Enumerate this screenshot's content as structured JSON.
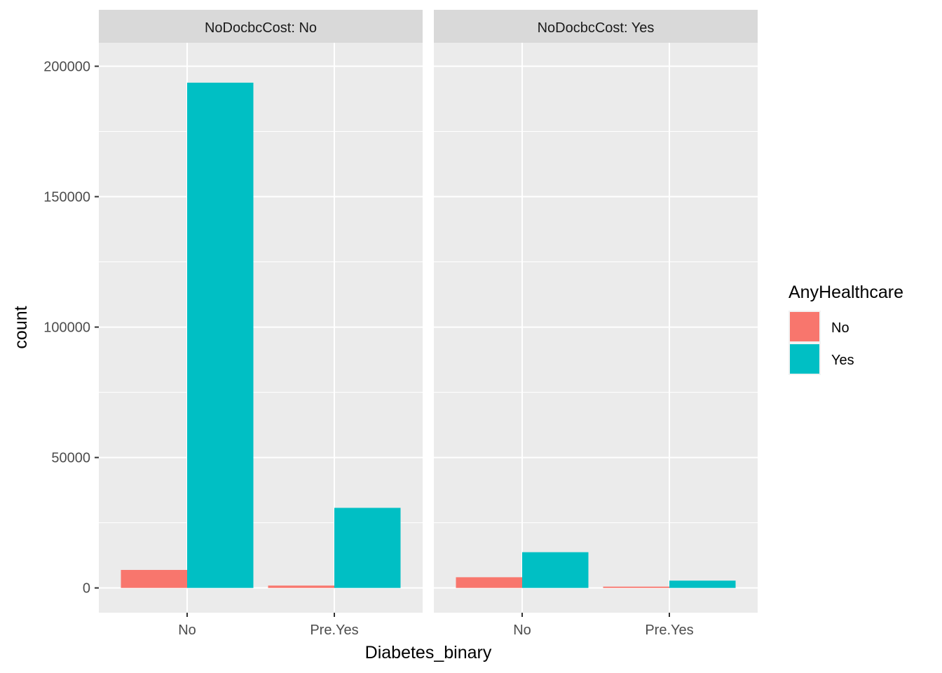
{
  "chart_data": {
    "type": "bar",
    "facet_variable": "NoDocbcCost",
    "facets": [
      {
        "label": "NoDocbcCost: No",
        "categories": [
          "No",
          "Pre.Yes"
        ],
        "series": [
          {
            "name": "No",
            "values": [
              6900,
              900
            ]
          },
          {
            "name": "Yes",
            "values": [
              193700,
              30700
            ]
          }
        ]
      },
      {
        "label": "NoDocbcCost: Yes",
        "categories": [
          "No",
          "Pre.Yes"
        ],
        "series": [
          {
            "name": "No",
            "values": [
              4100,
              500
            ]
          },
          {
            "name": "Yes",
            "values": [
              13700,
              2800
            ]
          }
        ]
      }
    ],
    "xlabel": "Diabetes_binary",
    "ylabel": "count",
    "ylim": [
      -9500,
      209000
    ],
    "yticks": [
      0,
      50000,
      100000,
      150000,
      200000
    ],
    "ytick_labels": [
      "0",
      "50000",
      "100000",
      "150000",
      "200000"
    ],
    "grid": true,
    "legend": {
      "title": "AnyHealthcare",
      "placement": "right",
      "entries": [
        {
          "label": "No",
          "color": "#F8766D"
        },
        {
          "label": "Yes",
          "color": "#00BFC4"
        }
      ]
    },
    "colors": {
      "panel_background": "#EBEBEB",
      "strip_background": "#D9D9D9",
      "grid": "#FFFFFF"
    }
  }
}
